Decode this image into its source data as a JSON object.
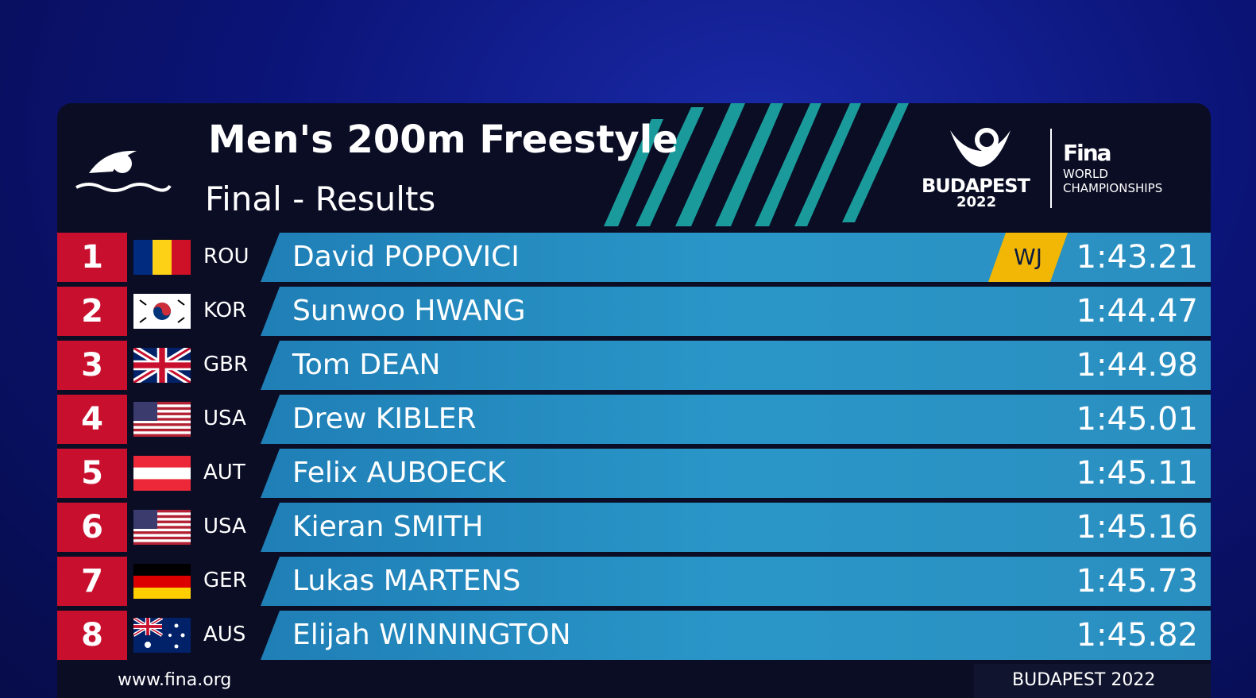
{
  "header": {
    "title": "Men's 200m Freestyle",
    "subtitle": "Final - Results",
    "logo": {
      "city": "BUDAPEST",
      "year": "2022",
      "brand": "Fina",
      "line1": "WORLD",
      "line2": "CHAMPIONSHIPS"
    }
  },
  "table": {
    "rows": [
      {
        "rank": 1,
        "country": "ROU",
        "name": "David POPOVICI",
        "record": "WJ",
        "time": "1:43.21"
      },
      {
        "rank": 2,
        "country": "KOR",
        "name": "Sunwoo HWANG",
        "time": "1:44.47"
      },
      {
        "rank": 3,
        "country": "GBR",
        "name": "Tom DEAN",
        "time": "1:44.98"
      },
      {
        "rank": 4,
        "country": "USA",
        "name": "Drew KIBLER",
        "time": "1:45.01"
      },
      {
        "rank": 5,
        "country": "AUT",
        "name": "Felix AUBOECK",
        "time": "1:45.11"
      },
      {
        "rank": 6,
        "country": "USA",
        "name": "Kieran SMITH",
        "time": "1:45.16"
      },
      {
        "rank": 7,
        "country": "GER",
        "name": "Lukas MARTENS",
        "time": "1:45.73"
      },
      {
        "rank": 8,
        "country": "AUS",
        "name": "Elijah WINNINGTON",
        "time": "1:45.82"
      }
    ]
  },
  "footer": {
    "left": "www.fina.org",
    "right": "BUDAPEST 2022"
  }
}
